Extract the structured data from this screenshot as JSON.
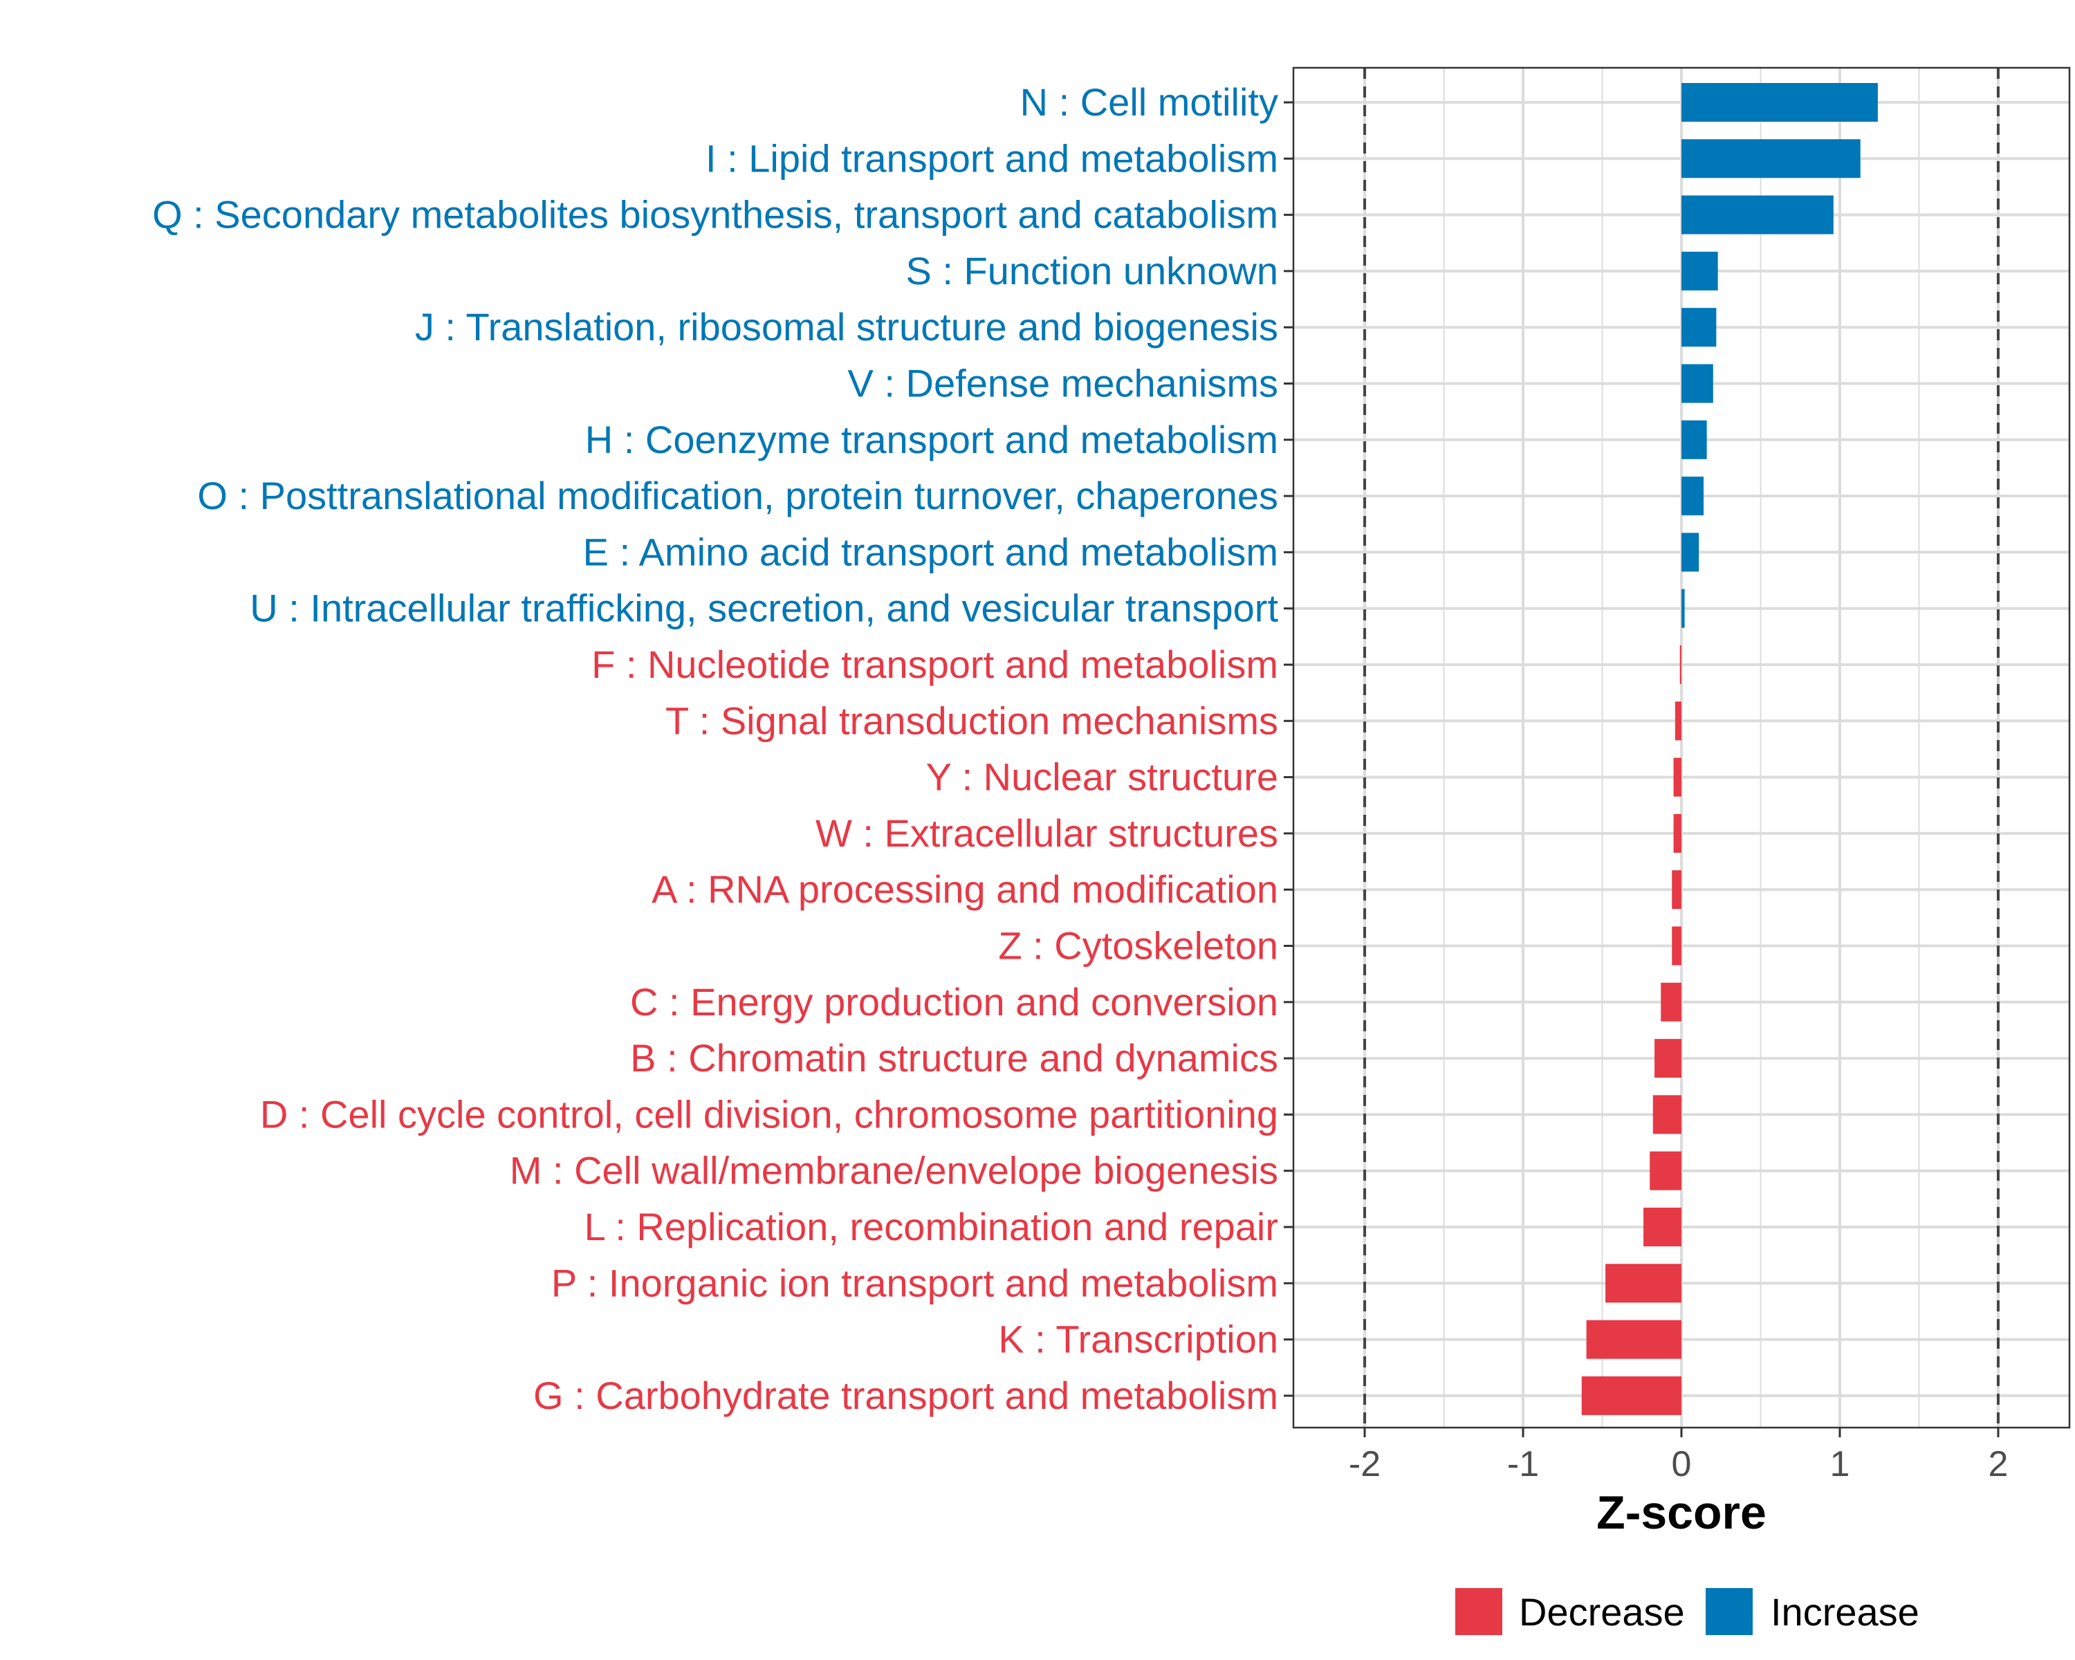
{
  "chart_data": {
    "type": "bar",
    "orientation": "horizontal",
    "title": "",
    "xlabel": "Z-score",
    "ylabel": "",
    "xlim": [
      -2.45,
      2.45
    ],
    "xticks": [
      -2,
      -1,
      0,
      1,
      2
    ],
    "xtick_labels": [
      "-2",
      "-1",
      "0",
      "1",
      "2"
    ],
    "reference_lines": [
      -2,
      2
    ],
    "grid": true,
    "legend_position": "bottom",
    "colors": {
      "Decrease": "#e63946",
      "Increase": "#0077b6"
    },
    "legend": [
      {
        "key": "Decrease",
        "label": "Decrease"
      },
      {
        "key": "Increase",
        "label": "Increase"
      }
    ],
    "categories": [
      "N : Cell motility",
      "I : Lipid transport and metabolism",
      "Q : Secondary metabolites biosynthesis, transport and catabolism",
      "S : Function unknown",
      "J : Translation, ribosomal structure and biogenesis",
      "V : Defense mechanisms",
      "H : Coenzyme transport and metabolism",
      "O : Posttranslational modification, protein turnover, chaperones",
      "E : Amino acid transport and metabolism",
      "U : Intracellular trafficking, secretion, and vesicular transport",
      "F : Nucleotide transport and metabolism",
      "T : Signal transduction mechanisms",
      "Y : Nuclear structure",
      "W : Extracellular structures",
      "A : RNA processing and modification",
      "Z : Cytoskeleton",
      "C : Energy production and conversion",
      "B : Chromatin structure and dynamics",
      "D : Cell cycle control, cell division, chromosome partitioning",
      "M : Cell wall/membrane/envelope biogenesis",
      "L : Replication, recombination and repair",
      "P : Inorganic ion transport and metabolism",
      "K : Transcription",
      "G : Carbohydrate transport and metabolism"
    ],
    "values": [
      1.24,
      1.13,
      0.96,
      0.23,
      0.22,
      0.2,
      0.16,
      0.14,
      0.11,
      0.02,
      -0.01,
      -0.04,
      -0.05,
      -0.05,
      -0.06,
      -0.06,
      -0.13,
      -0.17,
      -0.18,
      -0.2,
      -0.24,
      -0.48,
      -0.6,
      -0.63
    ],
    "groups": [
      "Increase",
      "Increase",
      "Increase",
      "Increase",
      "Increase",
      "Increase",
      "Increase",
      "Increase",
      "Increase",
      "Increase",
      "Decrease",
      "Decrease",
      "Decrease",
      "Decrease",
      "Decrease",
      "Decrease",
      "Decrease",
      "Decrease",
      "Decrease",
      "Decrease",
      "Decrease",
      "Decrease",
      "Decrease",
      "Decrease"
    ]
  }
}
